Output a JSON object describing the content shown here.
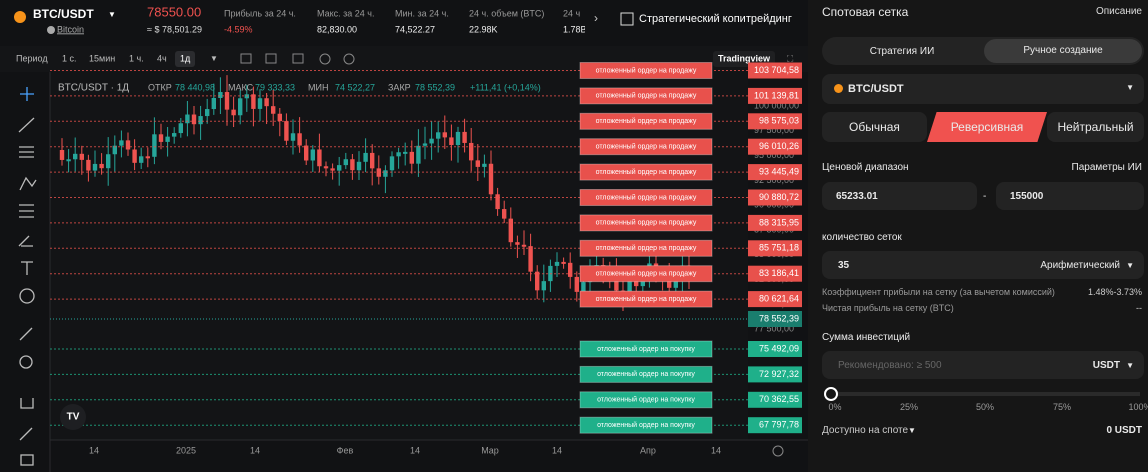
{
  "header": {
    "pair": "BTC/USDT",
    "coin": "Bitcoin",
    "price": "78550.00",
    "price_usd": "≈ $ 78,501.29",
    "stats": [
      {
        "label": "Прибыль за 24 ч.",
        "value": "-4.59%"
      },
      {
        "label": "Макс. за 24 ч.",
        "value": "82,830.00"
      },
      {
        "label": "Мин. за 24 ч.",
        "value": "74,522.27"
      },
      {
        "label": "24 ч. объем (BTC)",
        "value": "22.98K"
      },
      {
        "label": "24 ч",
        "value": "1.78B"
      }
    ],
    "copytrade": "Стратегический копитрейдинг"
  },
  "toolbar": {
    "period": "Период",
    "intervals": [
      "1 с.",
      "15мин",
      "1 ч.",
      "4ч",
      "1д"
    ],
    "tradingview": "Tradingview"
  },
  "chart": {
    "symbol": "BTC/USDT · 1Д",
    "ohlc": [
      {
        "label": "ОТКР",
        "value": "78 440,98"
      },
      {
        "label": "МАКС",
        "value": "79 333,33"
      },
      {
        "label": "МИН",
        "value": "74 522,27"
      },
      {
        "label": "ЗАКР",
        "value": "78 552,39"
      }
    ],
    "change": "+111,41 (+0,14%)",
    "sell_orders": [
      {
        "label": "отложенный ордер на продажу",
        "price": "103 704,58"
      },
      {
        "label": "отложенный ордер на продажу",
        "price": "101 139,81"
      },
      {
        "label": "отложенный ордер на продажу",
        "price": "98 575,03"
      },
      {
        "label": "отложенный ордер на продажу",
        "price": "96 010,26"
      },
      {
        "label": "отложенный ордер на продажу",
        "price": "93 445,49"
      },
      {
        "label": "отложенный ордер на продажу",
        "price": "90 880,72"
      },
      {
        "label": "отложенный ордер на продажу",
        "price": "88 315,95"
      },
      {
        "label": "отложенный ордер на продажу",
        "price": "85 751,18"
      },
      {
        "label": "отложенный ордер на продажу",
        "price": "83 186,41"
      },
      {
        "label": "отложенный ордер на продажу",
        "price": "80 621,64"
      }
    ],
    "current_price": "78 552,39",
    "buy_orders": [
      {
        "label": "отложенный ордер на покупку",
        "price": "75 492,09"
      },
      {
        "label": "отложенный ордер на покупку",
        "price": "72 927,32"
      },
      {
        "label": "отложенный ордер на покупку",
        "price": "70 362,55"
      },
      {
        "label": "отложенный ордер на покупку",
        "price": "67 797,78"
      }
    ],
    "y_axis": [
      "100 000,00",
      "97 500,00",
      "95 000,00",
      "92 500,00",
      "90 000,00",
      "87 500,00",
      "85 000,00",
      "82 500,00",
      "80 000,00",
      "77 500,00"
    ],
    "x_axis": [
      "14",
      "2025",
      "14",
      "Фев",
      "14",
      "Мар",
      "14",
      "Апр",
      "14"
    ]
  },
  "panel": {
    "title": "Спотовая сетка",
    "description": "Описание",
    "tabs": [
      "Стратегия ИИ",
      "Ручное создание"
    ],
    "pair": "BTC/USDT",
    "modes": [
      "Обычная",
      "Реверсивная",
      "Нейтральный"
    ],
    "range_label": "Ценовой диапазон",
    "ai_params": "Параметры ИИ",
    "range_low": "65233.01",
    "range_sep": "-",
    "range_high": "155000",
    "grid_count_label": "количество сеток",
    "grid_count": "35",
    "grid_mode": "Арифметический",
    "profit_label": "Коэффициент прибыли на сетку (за вычетом комиссий)",
    "profit_value": "1.48%-3.73%",
    "net_label": "Чистая прибыль на сетку (BTC)",
    "net_value": "--",
    "invest_label": "Сумма инвестиций",
    "invest_placeholder": "Рекомендовано: ≥ 500",
    "invest_currency": "USDT",
    "slider": [
      "0%",
      "25%",
      "50%",
      "75%",
      "100%"
    ],
    "available_label": "Доступно на споте",
    "available_value": "0 USDT"
  }
}
